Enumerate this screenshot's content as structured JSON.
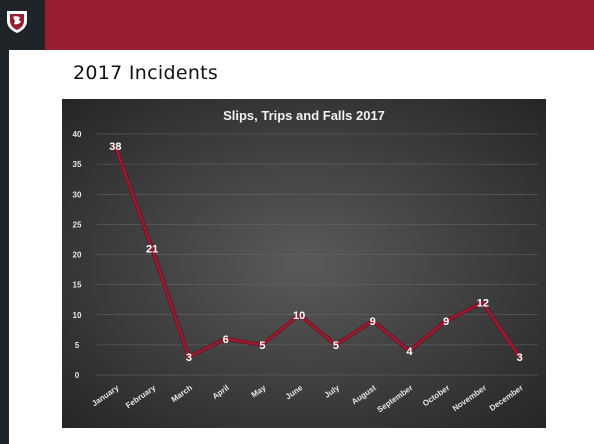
{
  "slide": {
    "title": "2017 Incidents"
  },
  "colors": {
    "header": "#981e32",
    "dark": "#1f2429",
    "line": "#9b1c30"
  },
  "logo_icon": "wsu-cougar-shield-icon",
  "chart_data": {
    "type": "line",
    "title": "Slips, Trips and Falls 2017",
    "xlabel": "",
    "ylabel": "",
    "categories": [
      "January",
      "February",
      "March",
      "April",
      "May",
      "June",
      "July",
      "August",
      "September",
      "October",
      "November",
      "December"
    ],
    "series": [
      {
        "values": [
          38,
          21,
          3,
          6,
          5,
          10,
          5,
          9,
          4,
          9,
          12,
          3
        ]
      }
    ],
    "ylim": [
      0,
      40
    ],
    "yticks": [
      0,
      5,
      10,
      15,
      20,
      25,
      30,
      35,
      40
    ],
    "grid": true,
    "data_labels": true,
    "legend": "none"
  }
}
